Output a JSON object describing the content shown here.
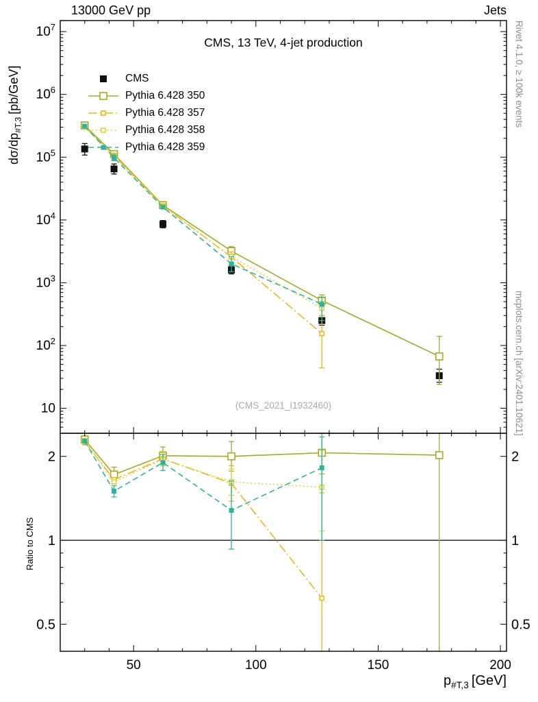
{
  "captions": {
    "right_top": "Rivet 4.1.0, ≥ 100k events",
    "right_bottom": "mcplots.cern.ch [arXiv:2401.10621]"
  },
  "chart_data": {
    "type": "line",
    "title": "CMS, 13 TeV, 4-jet production",
    "header_left": "13000 GeV pp",
    "header_right": "Jets",
    "watermark": "(CMS_2021_I1932460)",
    "xlabel": {
      "prefix": "p",
      "sub": "#T,3",
      "suffix": "[GeV]"
    },
    "ylabel": {
      "prefix": "dσ/dp",
      "sub": "#T,3",
      "suffix": "[pb/GeV]"
    },
    "ratio_ylabel": "Ratio to CMS",
    "x_axis": {
      "min": 20,
      "max": 202.5,
      "major_ticks": [
        50,
        100,
        150,
        200
      ],
      "minor_step": 10
    },
    "y_axis": {
      "min": 4,
      "max": 15000000.0,
      "tick_exponents": [
        1,
        2,
        3,
        4,
        5,
        6,
        7
      ]
    },
    "ratio_axis": {
      "min": 0.4,
      "max": 2.42,
      "major_ticks": [
        0.5,
        1,
        2
      ],
      "tick_labels": [
        "0.5",
        "1",
        "2"
      ],
      "minor_ticks": [
        0.6,
        0.7,
        0.8,
        0.9
      ]
    },
    "series": [
      {
        "name": "CMS",
        "color": "#111111",
        "marker": "filled-square",
        "marker_size": 10,
        "line": "none",
        "points": [
          {
            "x": 30,
            "y": 135000,
            "ylo": 108000,
            "yhi": 165000
          },
          {
            "x": 42,
            "y": 65000,
            "ylo": 54000,
            "yhi": 78000
          },
          {
            "x": 62,
            "y": 8600,
            "ylo": 7500,
            "yhi": 9800
          },
          {
            "x": 90,
            "y": 1600,
            "ylo": 1380,
            "yhi": 1850
          },
          {
            "x": 127,
            "y": 250,
            "ylo": 210,
            "yhi": 300
          },
          {
            "x": 175,
            "y": 33,
            "ylo": 26,
            "yhi": 42
          }
        ],
        "ratio": null
      },
      {
        "name": "Pythia 6.428 350",
        "color": "#a8a825",
        "marker": "open-square",
        "marker_size": 10,
        "line": "solid",
        "points": [
          {
            "x": 30,
            "y": 320000,
            "ylo": 300000,
            "yhi": 342000
          },
          {
            "x": 42,
            "y": 112000,
            "ylo": 101000,
            "yhi": 124000
          },
          {
            "x": 62,
            "y": 17200,
            "ylo": 15500,
            "yhi": 19000
          },
          {
            "x": 90,
            "y": 3200,
            "ylo": 2750,
            "yhi": 3750
          },
          {
            "x": 127,
            "y": 520,
            "ylo": 430,
            "yhi": 640
          },
          {
            "x": 175,
            "y": 67,
            "ylo": 24,
            "yhi": 140
          }
        ],
        "ratio": [
          {
            "x": 30,
            "y": 2.3,
            "ylo": 2.2,
            "yhi": 2.42
          },
          {
            "x": 42,
            "y": 1.72,
            "ylo": 1.62,
            "yhi": 1.83
          },
          {
            "x": 62,
            "y": 2.01,
            "ylo": 1.88,
            "yhi": 2.16
          },
          {
            "x": 90,
            "y": 2.0,
            "ylo": 1.77,
            "yhi": 2.26
          },
          {
            "x": 127,
            "y": 2.06,
            "ylo": 1.73,
            "yhi": 2.42
          },
          {
            "x": 175,
            "y": 2.02,
            "ylo": 0.36,
            "yhi": 2.42
          }
        ]
      },
      {
        "name": "Pythia 6.428 357",
        "color": "#e9b817",
        "marker": "open-square",
        "marker_size": 6,
        "line": "dashdot",
        "points": [
          {
            "x": 30,
            "y": 305000
          },
          {
            "x": 42,
            "y": 107000
          },
          {
            "x": 62,
            "y": 16800
          },
          {
            "x": 90,
            "y": 2560,
            "ylo": 2100,
            "yhi": 3100
          },
          {
            "x": 127,
            "y": 155,
            "ylo": 44,
            "yhi": 420
          }
        ],
        "ratio": [
          {
            "x": 30,
            "y": 2.26
          },
          {
            "x": 42,
            "y": 1.65
          },
          {
            "x": 62,
            "y": 1.96,
            "ylo": 1.85,
            "yhi": 2.08
          },
          {
            "x": 90,
            "y": 1.6,
            "ylo": 1.38,
            "yhi": 1.85
          },
          {
            "x": 127,
            "y": 0.62,
            "ylo": 0.4,
            "yhi": 1.48
          }
        ]
      },
      {
        "name": "Pythia 6.428 358",
        "color": "#e0d22e",
        "marker": "open-square",
        "marker_size": 6,
        "line": "dotted",
        "points": [
          {
            "x": 30,
            "y": 310000
          },
          {
            "x": 42,
            "y": 104000
          },
          {
            "x": 62,
            "y": 16300
          },
          {
            "x": 90,
            "y": 2600
          },
          {
            "x": 127,
            "y": 390,
            "ylo": 300,
            "yhi": 510
          }
        ],
        "ratio": [
          {
            "x": 30,
            "y": 2.28
          },
          {
            "x": 42,
            "y": 1.62
          },
          {
            "x": 62,
            "y": 1.95
          },
          {
            "x": 90,
            "y": 1.62,
            "ylo": 1.45,
            "yhi": 1.8
          },
          {
            "x": 127,
            "y": 1.55,
            "ylo": 1.08,
            "yhi": 2.1
          }
        ]
      },
      {
        "name": "Pythia 6.428 359",
        "color": "#2bb3a0",
        "marker": "filled-square",
        "marker_size": 7,
        "line": "dashed",
        "points": [
          {
            "x": 30,
            "y": 312000
          },
          {
            "x": 42,
            "y": 98000,
            "ylo": 88000,
            "yhi": 109000
          },
          {
            "x": 62,
            "y": 16000
          },
          {
            "x": 90,
            "y": 2000,
            "ylo": 1500,
            "yhi": 2600
          },
          {
            "x": 127,
            "y": 455,
            "ylo": 250,
            "yhi": 580
          }
        ],
        "ratio": [
          {
            "x": 30,
            "y": 2.27
          },
          {
            "x": 42,
            "y": 1.5,
            "ylo": 1.43,
            "yhi": 1.57
          },
          {
            "x": 62,
            "y": 1.9,
            "ylo": 1.78,
            "yhi": 2.03
          },
          {
            "x": 90,
            "y": 1.28,
            "ylo": 0.93,
            "yhi": 1.63
          },
          {
            "x": 127,
            "y": 1.82,
            "ylo": 1.0,
            "yhi": 2.35
          }
        ]
      }
    ]
  }
}
